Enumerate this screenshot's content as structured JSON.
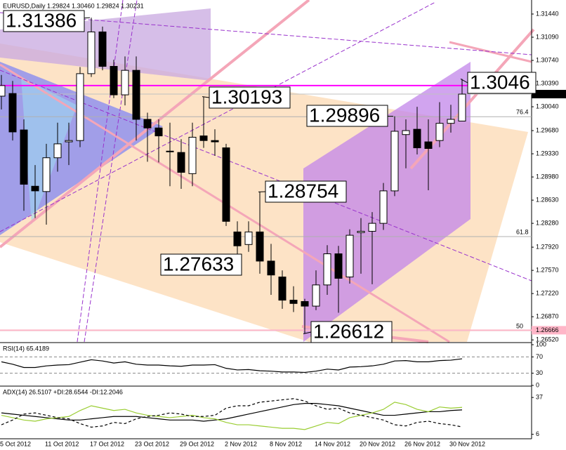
{
  "chart_data": [
    {
      "type": "candlestick",
      "title": "EURUSD,Daily  1.29824 1.30460 1.29824 1.30231",
      "categories": [
        "5 Oct 2012",
        null,
        null,
        null,
        "11 Oct 2012",
        null,
        null,
        null,
        "17 Oct 2012",
        null,
        null,
        null,
        "23 Oct 2012",
        null,
        null,
        null,
        "29 Oct 2012",
        null,
        null,
        null,
        "2 Nov 2012",
        null,
        null,
        null,
        "8 Nov 2012",
        null,
        null,
        null,
        "14 Nov 2012",
        null,
        null,
        null,
        "20 Nov 2012",
        null,
        null,
        null,
        "26 Nov 2012",
        null,
        null,
        null,
        "30 Nov 2012",
        null
      ],
      "open": [
        1.302,
        1.3024,
        1.2969,
        1.2884,
        1.2876,
        1.2927,
        1.2951,
        1.2953,
        1.3054,
        1.3117,
        1.3065,
        1.3022,
        1.3059,
        1.2985,
        1.2972,
        1.2937,
        1.2935,
        1.2903,
        1.296,
        1.2953,
        1.2942,
        1.2815,
        1.2796,
        1.2815,
        1.2771,
        1.2747,
        1.2712,
        1.271,
        1.2703,
        1.2735,
        1.2782,
        1.2747,
        1.2814,
        1.2816,
        1.2828,
        1.2877,
        1.2962,
        1.297,
        1.2951,
        1.2953,
        1.2979,
        1.29824
      ],
      "high": [
        1.3052,
        1.3043,
        1.2985,
        1.2916,
        1.2948,
        1.298,
        1.298,
        1.3064,
        1.31386,
        1.3125,
        1.3075,
        1.308,
        1.308,
        1.2995,
        1.2985,
        1.298,
        1.2955,
        1.298,
        1.30193,
        1.297,
        1.2948,
        1.2831,
        1.2831,
        1.28754,
        1.2797,
        1.2757,
        1.2733,
        1.2714,
        1.2757,
        1.2795,
        1.2794,
        1.2819,
        1.2836,
        1.2845,
        1.2889,
        1.29896,
        1.2985,
        1.3004,
        1.2985,
        1.3011,
        1.3007,
        1.3046
      ],
      "low": [
        1.3,
        1.2953,
        1.2847,
        1.2836,
        1.2826,
        1.2906,
        1.2916,
        1.2943,
        1.3049,
        1.3059,
        1.3017,
        1.3006,
        1.2953,
        1.2921,
        1.292,
        1.2884,
        1.288,
        1.2884,
        1.2942,
        1.293,
        1.2824,
        1.27633,
        1.2785,
        1.2752,
        1.272,
        1.2699,
        1.2694,
        1.26612,
        1.2697,
        1.272,
        1.2693,
        1.2737,
        1.2752,
        1.2736,
        1.2818,
        1.2869,
        1.2911,
        1.2932,
        1.2878,
        1.2943,
        1.2965,
        1.29824
      ],
      "close": [
        1.3036,
        1.2966,
        1.2887,
        1.2877,
        1.2927,
        1.2948,
        1.2953,
        1.3054,
        1.3117,
        1.3065,
        1.3022,
        1.3059,
        1.2985,
        1.2972,
        1.296,
        1.2936,
        1.2905,
        1.2958,
        1.2953,
        1.2951,
        1.2831,
        1.2794,
        1.2815,
        1.2771,
        1.275,
        1.2712,
        1.2707,
        1.2703,
        1.2735,
        1.2782,
        1.2745,
        1.281,
        1.2816,
        1.2828,
        1.2877,
        1.2967,
        1.2968,
        1.2942,
        1.2941,
        1.2979,
        1.2985,
        1.30231
      ],
      "up_color": "#ffffff",
      "down_color": "#000000",
      "ylim": [
        1.2649,
        1.3162
      ],
      "yticks": [
        {
          "value": 1.3144,
          "label": "1.31440"
        },
        {
          "value": 1.3109,
          "label": "1.31090"
        },
        {
          "value": 1.3074,
          "label": "1.30740"
        },
        {
          "value": 1.3039,
          "label": "1.30390"
        },
        {
          "value": 1.3004,
          "label": "1.30040"
        },
        {
          "value": 1.2968,
          "label": "1.29680"
        },
        {
          "value": 1.2933,
          "label": "1.29330"
        },
        {
          "value": 1.2898,
          "label": "1.28980"
        },
        {
          "value": 1.2863,
          "label": "1.28630"
        },
        {
          "value": 1.2828,
          "label": "1.28280"
        },
        {
          "value": 1.2792,
          "label": "1.27920"
        },
        {
          "value": 1.2757,
          "label": "1.27570"
        },
        {
          "value": 1.2722,
          "label": "1.27220"
        },
        {
          "value": 1.2687,
          "label": "1.26870"
        },
        {
          "value": 1.2652,
          "label": "1.26520"
        }
      ],
      "current_price": {
        "value": 1.30231,
        "label": "1.30231"
      },
      "alert_line": {
        "value": 1.26666,
        "label": "1.26666",
        "color": "#ffb6c8"
      },
      "magenta_line": {
        "value": 1.3036,
        "color": "#ff00ff"
      },
      "fib_levels": [
        {
          "level": 76.4,
          "price": 1.2989
        },
        {
          "level": 61.8,
          "price": 1.2808
        },
        {
          "level": 50,
          "price": 1.2666
        }
      ],
      "annotations": [
        {
          "value": 1.31386,
          "label": "1.31386"
        },
        {
          "value": 1.30193,
          "label": "1.30193"
        },
        {
          "value": 1.29896,
          "label": "1.29896"
        },
        {
          "value": 1.28754,
          "label": "1.28754"
        },
        {
          "value": 1.27633,
          "label": "1.27633"
        },
        {
          "value": 1.26612,
          "label": "1.26612"
        },
        {
          "value": 1.3046,
          "label": "1.3046"
        }
      ]
    },
    {
      "type": "line",
      "title": "RSI(14) 65.4189",
      "values": [
        58,
        52,
        44,
        44,
        48,
        50,
        51,
        57,
        63,
        60,
        55,
        58,
        52,
        50,
        50,
        48,
        47,
        50,
        50,
        51,
        42,
        38,
        39,
        36,
        35,
        33,
        33,
        32,
        35,
        40,
        38,
        45,
        46,
        48,
        52,
        60,
        61,
        58,
        58,
        61,
        62,
        65.4189
      ],
      "color": "#000000",
      "ylim": [
        0,
        100
      ],
      "yticks": [
        100,
        70,
        30,
        0
      ],
      "grid": true
    },
    {
      "type": "line",
      "title": "ADX(14) 26.5107 +DI:28.6544 -DI:12.2046",
      "series": [
        {
          "color": "#000000",
          "dash": false,
          "values": [
            24,
            23,
            22,
            21,
            20,
            19,
            18,
            18,
            19,
            20,
            21,
            21,
            21,
            20,
            19,
            18,
            18,
            18,
            17,
            18,
            19,
            21,
            23,
            25,
            27,
            29,
            31,
            32,
            32,
            31,
            30,
            28,
            26,
            24,
            22,
            22,
            23,
            24,
            25,
            25,
            26,
            26.5107
          ]
        },
        {
          "color": "#9acd32",
          "dash": false,
          "values": [
            22,
            20,
            18,
            17,
            19,
            20,
            21,
            26,
            30,
            28,
            26,
            27,
            24,
            22,
            21,
            20,
            21,
            22,
            20,
            19,
            16,
            14,
            14,
            13,
            12,
            11,
            11,
            10,
            13,
            16,
            15,
            20,
            22,
            24,
            27,
            33,
            31,
            27,
            25,
            29,
            28,
            28.6544
          ]
        },
        {
          "color": "#000000",
          "dash": true,
          "values": [
            14,
            18,
            23,
            24,
            22,
            20,
            19,
            15,
            12,
            13,
            16,
            15,
            19,
            21,
            22,
            24,
            23,
            21,
            21,
            22,
            28,
            30,
            30,
            33,
            34,
            35,
            36,
            34,
            30,
            27,
            28,
            24,
            22,
            20,
            18,
            14,
            13,
            16,
            17,
            15,
            14,
            12.2046
          ]
        }
      ],
      "ylim": [
        4,
        43
      ],
      "yticks": [
        37,
        6
      ],
      "grid": false
    }
  ]
}
